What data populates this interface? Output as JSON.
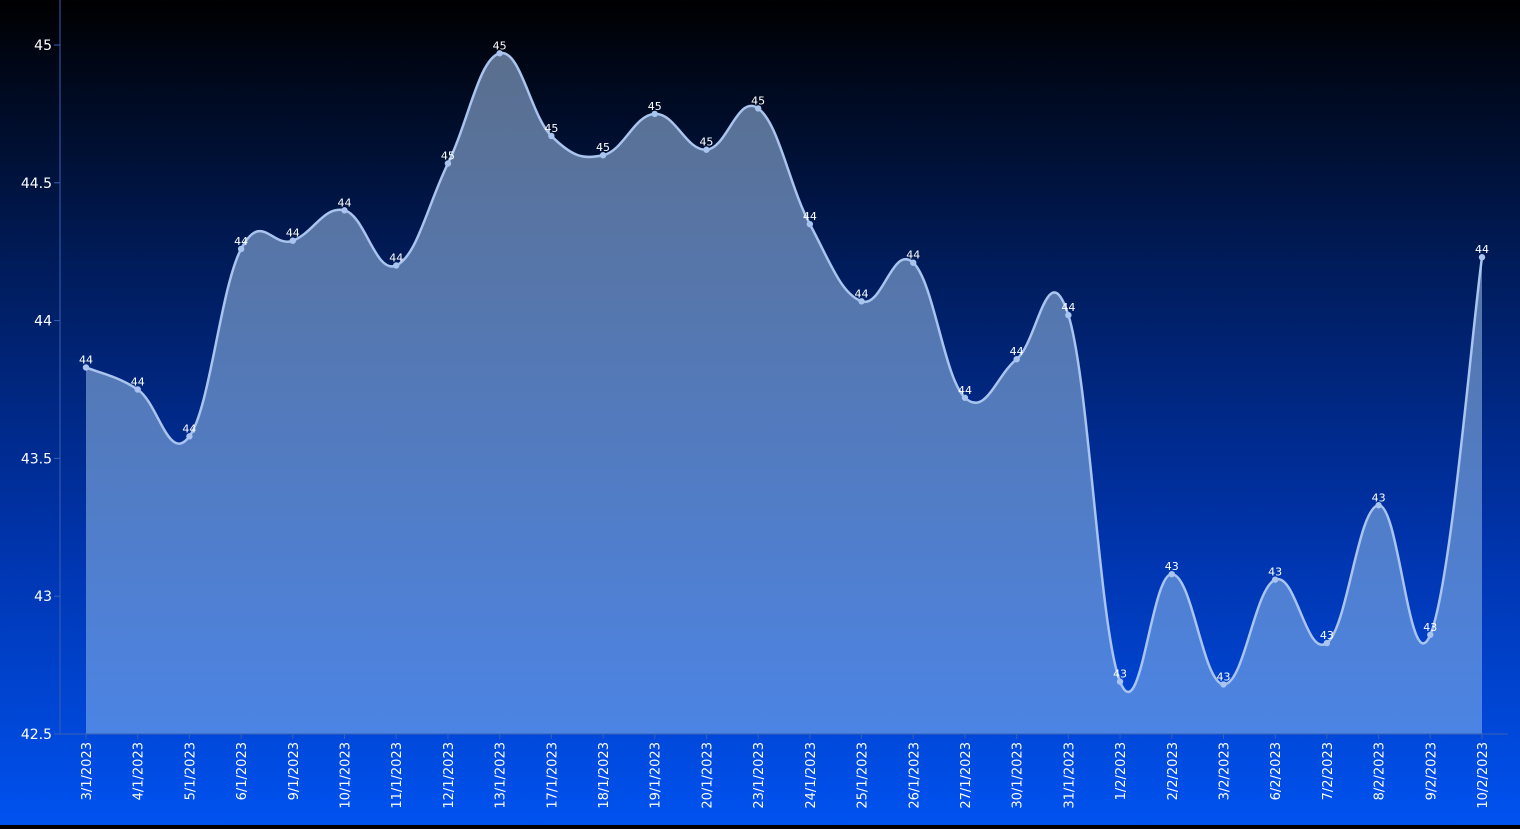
{
  "chart_data": {
    "type": "area",
    "title": "",
    "xlabel": "",
    "ylabel": "",
    "ylim": [
      42.5,
      45
    ],
    "y_ticks": [
      42.5,
      43,
      43.5,
      44,
      44.5,
      45
    ],
    "y_tick_labels": [
      "42.5",
      "43",
      "43.5",
      "44",
      "44.5",
      "45"
    ],
    "grid": false,
    "legend": "none",
    "categories": [
      "3/1/2023",
      "4/1/2023",
      "5/1/2023",
      "6/1/2023",
      "9/1/2023",
      "10/1/2023",
      "11/1/2023",
      "12/1/2023",
      "13/1/2023",
      "17/1/2023",
      "18/1/2023",
      "19/1/2023",
      "20/1/2023",
      "23/1/2023",
      "24/1/2023",
      "25/1/2023",
      "26/1/2023",
      "27/1/2023",
      "30/1/2023",
      "31/1/2023",
      "1/2/2023",
      "2/2/2023",
      "3/2/2023",
      "6/2/2023",
      "7/2/2023",
      "8/2/2023",
      "9/2/2023",
      "10/2/2023"
    ],
    "series": [
      {
        "values": [
          43.83,
          43.75,
          43.58,
          44.26,
          44.29,
          44.4,
          44.2,
          44.57,
          44.97,
          44.67,
          44.6,
          44.75,
          44.62,
          44.77,
          44.35,
          44.07,
          44.21,
          43.72,
          43.86,
          44.02,
          42.69,
          43.08,
          42.68,
          43.06,
          42.83,
          43.33,
          42.86,
          44.23
        ],
        "labels": [
          "44",
          "44",
          "44",
          "44",
          "44",
          "44",
          "44",
          "45",
          "45",
          "45",
          "45",
          "45",
          "45",
          "45",
          "44",
          "44",
          "44",
          "44",
          "44",
          "44",
          "43",
          "43",
          "43",
          "43",
          "43",
          "43",
          "43",
          "44"
        ]
      }
    ],
    "colors": {
      "line": "#a9c4ee",
      "point": "#a9c4ee",
      "area_top": "#5b6f8e",
      "area_bottom": "#4c84e4",
      "axis": "#3a5fb5",
      "text": "#ffffff"
    }
  }
}
